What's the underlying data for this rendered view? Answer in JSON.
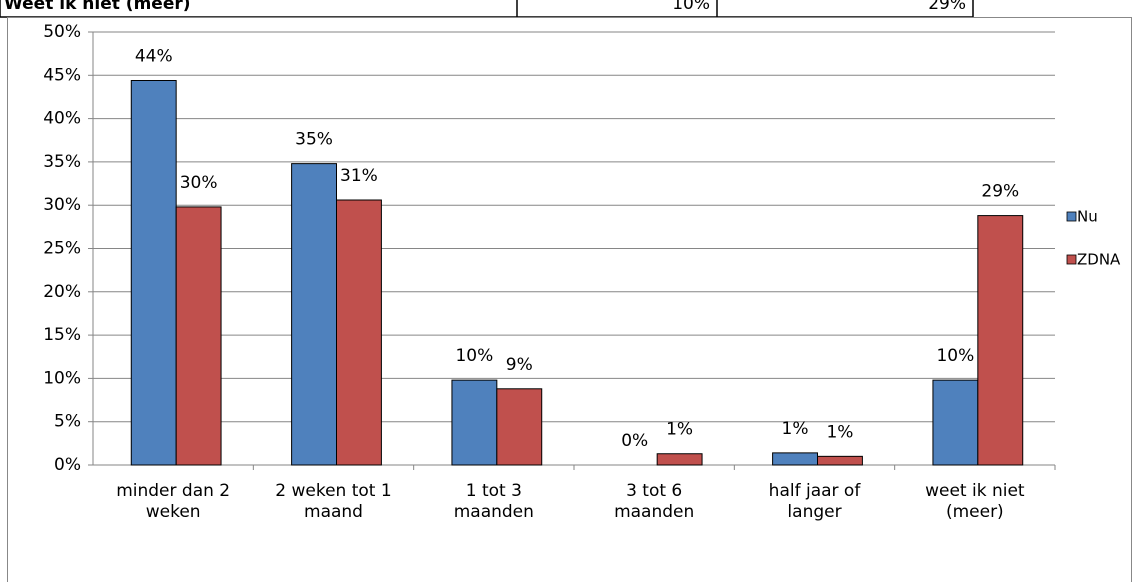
{
  "table": {
    "rows": [
      [
        "Weet ik niet (meer)",
        "10%",
        "29%"
      ]
    ]
  },
  "chart_data": {
    "type": "bar",
    "categories": [
      "minder dan 2 weken",
      "2 weken tot 1 maand",
      "1 tot 3 maanden",
      "3 tot 6 maanden",
      "half jaar of langer",
      "weet ik niet (meer)"
    ],
    "series": [
      {
        "name": "Nu",
        "color": "#4f81bd",
        "values": [
          44.4,
          34.8,
          9.8,
          0,
          1.4,
          9.8
        ],
        "value_labels": [
          "44%",
          "35%",
          "10%",
          "0%",
          "1%",
          "10%"
        ]
      },
      {
        "name": "ZDNA",
        "color": "#c0504d",
        "values": [
          29.8,
          30.6,
          8.8,
          1.3,
          1.0,
          28.8
        ],
        "value_labels": [
          "30%",
          "31%",
          "9%",
          "1%",
          "1%",
          "29%"
        ]
      }
    ],
    "ylim": [
      0,
      50
    ],
    "yticks": [
      {
        "value": 0,
        "label": "0%"
      },
      {
        "value": 5,
        "label": "5%"
      },
      {
        "value": 10,
        "label": "10%"
      },
      {
        "value": 15,
        "label": "15%"
      },
      {
        "value": 20,
        "label": "20%"
      },
      {
        "value": 25,
        "label": "25%"
      },
      {
        "value": 30,
        "label": "30%"
      },
      {
        "value": 35,
        "label": "35%"
      },
      {
        "value": 40,
        "label": "40%"
      },
      {
        "value": 45,
        "label": "45%"
      },
      {
        "value": 50,
        "label": "50%"
      }
    ],
    "grid": true,
    "legend": "right"
  }
}
